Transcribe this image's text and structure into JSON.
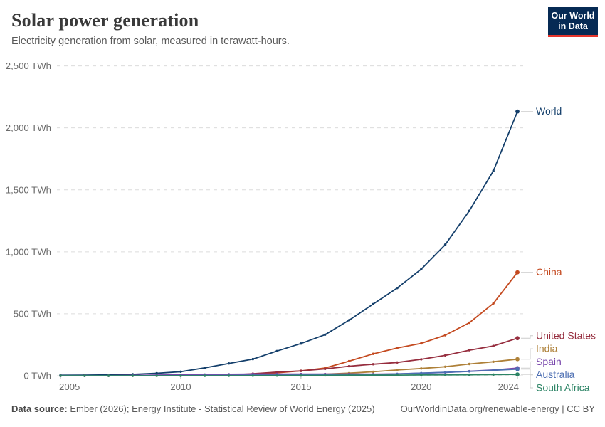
{
  "header": {
    "title": "Solar power generation",
    "subtitle": "Electricity generation from solar, measured in terawatt-hours.",
    "logo": {
      "line1": "Our World",
      "line2": "in Data",
      "bg_color": "#062a54",
      "accent_color": "#e5352c"
    }
  },
  "footer": {
    "source_label": "Data source:",
    "source_text": "Ember (2026); Energy Institute - Statistical Review of World Energy (2025)",
    "right_text": "OurWorldinData.org/renewable-energy | CC BY"
  },
  "chart_data": {
    "type": "line",
    "title": "Solar power generation",
    "unit": "TWh",
    "x": [
      2005,
      2006,
      2007,
      2008,
      2009,
      2010,
      2011,
      2012,
      2013,
      2014,
      2015,
      2016,
      2017,
      2018,
      2019,
      2020,
      2021,
      2022,
      2023,
      2024
    ],
    "xticks": [
      2005,
      2010,
      2015,
      2020,
      2024
    ],
    "xlim": [
      2005,
      2024
    ],
    "ylim": [
      0,
      2500
    ],
    "yticks": [
      0,
      500,
      1000,
      1500,
      2000,
      2500
    ],
    "ytick_labels": [
      "0 TWh",
      "500 TWh",
      "1,000 TWh",
      "1,500 TWh",
      "2,000 TWh",
      "2,500 TWh"
    ],
    "grid": "horizontal-dashed",
    "gridline_color": "#dcdcdc",
    "axis_text_color": "#6b6b6b",
    "legend_position": "end-of-line-labels",
    "connector_color": "#cccccc",
    "series": [
      {
        "name": "World",
        "color": "#143f6b",
        "values": [
          4.0,
          5.2,
          7.0,
          11.6,
          20.1,
          32.7,
          63.6,
          99.5,
          134.5,
          199.1,
          260.1,
          331.1,
          448.3,
          578.1,
          708.1,
          860.1,
          1058.1,
          1330.7,
          1653.3,
          2132.1
        ]
      },
      {
        "name": "China",
        "color": "#c44a20",
        "values": [
          0.1,
          0.2,
          0.2,
          0.3,
          0.4,
          0.7,
          2.6,
          3.6,
          8.4,
          23.5,
          39.5,
          62.4,
          117.8,
          176.9,
          223.8,
          261.1,
          327.0,
          427.8,
          584.2,
          834.1
        ]
      },
      {
        "name": "United States",
        "color": "#962d3e",
        "values": [
          0.6,
          0.6,
          0.7,
          0.9,
          1.3,
          1.7,
          2.8,
          5.1,
          16.9,
          29.2,
          39.4,
          54.9,
          77.2,
          93.1,
          107.3,
          132.6,
          164.0,
          206.1,
          240.3,
          303.2
        ]
      },
      {
        "name": "India",
        "color": "#ae8038",
        "values": [
          0.0,
          0.0,
          0.0,
          0.0,
          0.0,
          0.1,
          0.3,
          1.1,
          3.4,
          5.0,
          7.5,
          12.6,
          21.5,
          32.1,
          46.3,
          58.7,
          73.1,
          94.7,
          113.4,
          133.9
        ]
      },
      {
        "name": "Spain",
        "color": "#7846ab",
        "values": [
          0.04,
          0.1,
          0.5,
          2.6,
          6.0,
          7.1,
          9.8,
          11.9,
          13.8,
          13.7,
          13.9,
          13.6,
          14.2,
          12.8,
          15.1,
          20.5,
          26.6,
          37.0,
          46.5,
          61.4
        ]
      },
      {
        "name": "Australia",
        "color": "#4d6fb3",
        "values": [
          0.1,
          0.1,
          0.2,
          0.3,
          0.4,
          0.8,
          1.5,
          2.6,
          3.8,
          4.9,
          5.9,
          6.9,
          8.1,
          9.9,
          14.8,
          21.0,
          27.8,
          35.3,
          44.0,
          53.4
        ]
      },
      {
        "name": "South Africa",
        "color": "#2c8465",
        "values": [
          0.0,
          0.0,
          0.0,
          0.0,
          0.0,
          0.0,
          0.0,
          0.0,
          0.3,
          1.1,
          2.4,
          2.9,
          4.2,
          4.7,
          5.4,
          6.3,
          7.3,
          8.0,
          9.5,
          10.9
        ]
      }
    ]
  }
}
